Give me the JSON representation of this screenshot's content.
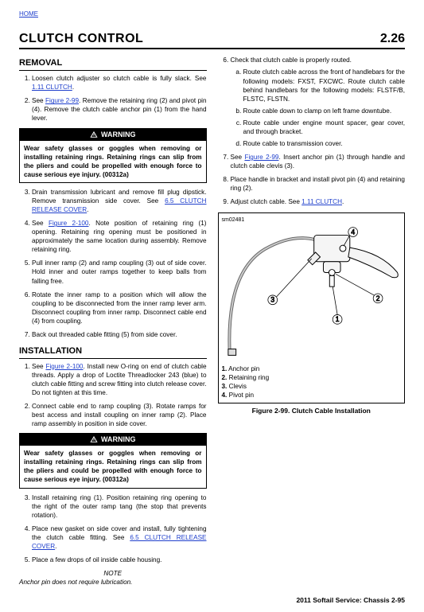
{
  "home_link": "HOME",
  "main_title": "CLUTCH CONTROL",
  "section_num": "2.26",
  "removal_head": "REMOVAL",
  "installation_head": "INSTALLATION",
  "removal_steps_left": [
    {
      "n": 1,
      "html": "Loosen clutch adjuster so clutch cable is fully slack. See <a class='xref' data-name='xref-clutch-1'>1.11 CLUTCH</a>."
    },
    {
      "n": 2,
      "html": "See <a class='xref' data-name='xref-fig299-a'>Figure 2-99</a>. Remove the retaining ring (2) and pivot pin (4). Remove the clutch cable anchor pin (1) from the hand lever."
    }
  ],
  "warning_label": "WARNING",
  "warning_text": "Wear safety glasses or goggles when removing or installing retaining rings. Retaining rings can slip from the pliers and could be propelled with enough force to cause serious eye injury. (00312a)",
  "removal_steps_left_b": [
    {
      "n": 3,
      "html": "Drain transmission lubricant and remove fill plug dipstick. Remove transmission side cover. See <a class='xref' data-name='xref-65-release-a'>6.5 CLUTCH RELEASE COVER</a>."
    },
    {
      "n": 4,
      "html": "See <a class='xref' data-name='xref-fig2100-a'>Figure 2-100</a>. Note position of retaining ring (1) opening. Retaining ring opening must be positioned in approximately the same location during assembly. Remove retaining ring."
    },
    {
      "n": 5,
      "html": "Pull inner ramp (2) and ramp coupling (3) out of side cover. Hold inner and outer ramps together to keep balls from falling free."
    },
    {
      "n": 6,
      "html": "Rotate the inner ramp to a position which will allow the coupling to be disconnected from the inner ramp lever arm. Disconnect coupling from inner ramp. Disconnect cable end (4) from coupling."
    },
    {
      "n": 7,
      "html": "Back out threaded cable fitting (5) from side cover."
    }
  ],
  "install_steps_a": [
    {
      "n": 1,
      "html": "See <a class='xref' data-name='xref-fig2100-b'>Figure 2-100</a>. Install new O-ring on end of clutch cable threads. Apply a drop of Loctite Threadlocker 243 (blue) to clutch cable fitting and screw fitting into clutch release cover. Do not tighten at this time."
    },
    {
      "n": 2,
      "html": "Connect cable end to ramp coupling (3). Rotate ramps for best access and install coupling on inner ramp (2). Place ramp assembly in position in side cover."
    }
  ],
  "install_steps_b": [
    {
      "n": 3,
      "html": "Install retaining ring (1). Position retaining ring opening to the right of the outer ramp tang (the stop that prevents rotation)."
    },
    {
      "n": 4,
      "html": "Place new gasket on side cover and install, fully tightening the clutch cable fitting. See <a class='xref' data-name='xref-65-release-b'>6.5 CLUTCH RELEASE COVER</a>."
    },
    {
      "n": 5,
      "html": "Place a few drops of oil inside cable housing."
    }
  ],
  "note_head": "NOTE",
  "note_body": "Anchor pin does not require lubrication.",
  "right_steps_a": [
    {
      "n": 6,
      "html": "Check that clutch cable is properly routed.",
      "sub": [
        "Route clutch cable across the front of handlebars for the following models: FXST, FXCWC. Route clutch cable behind handlebars for the following models: FLSTF/B, FLSTC, FLSTN.",
        "Route cable down to clamp on left frame downtube.",
        "Route cable under engine mount spacer, gear cover, and through bracket.",
        "Route cable to transmission cover."
      ]
    },
    {
      "n": 7,
      "html": "See <a class='xref' data-name='xref-fig299-b'>Figure 2-99</a>. Insert anchor pin (1) through handle and clutch cable clevis (3)."
    },
    {
      "n": 8,
      "html": "Place handle in bracket and install pivot pin (4) and retaining ring (2)."
    },
    {
      "n": 9,
      "html": "Adjust clutch cable. See <a class='xref' data-name='xref-clutch-2'>1.11 CLUTCH</a>."
    }
  ],
  "fig_id": "sm02481",
  "callouts": [
    "1.  Anchor pin",
    "2.  Retaining ring",
    "3.  Clevis",
    "4.  Pivot pin"
  ],
  "fig_caption": "Figure 2-99. Clutch Cable Installation",
  "footer": "2011 Softail Service:  Chassis  2-95"
}
